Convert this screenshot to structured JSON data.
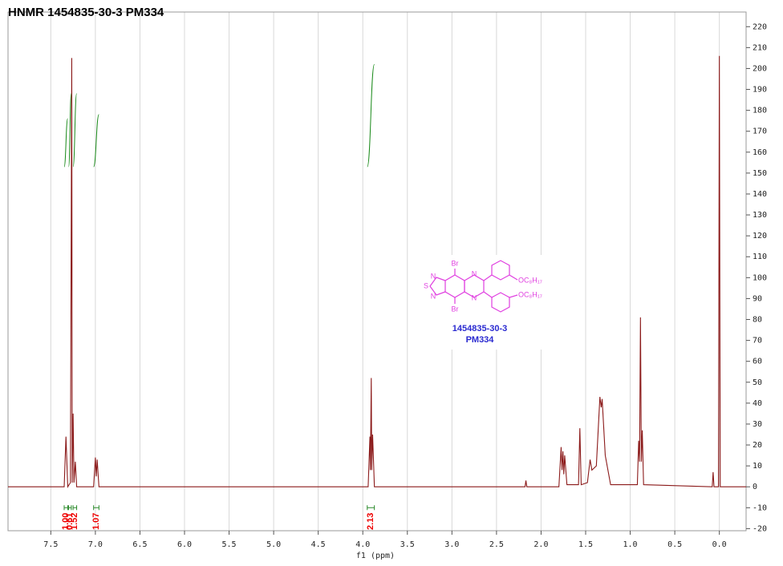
{
  "chart_data": {
    "type": "line",
    "title": "HNMR 1454835-30-3 PM334",
    "x_label": "f1 (ppm)",
    "xlim": [
      7.98,
      -0.3
    ],
    "ylim": [
      -21,
      227
    ],
    "xticks": [
      7.5,
      {
        "value": 7,
        "label": "7.0"
      },
      6.5,
      {
        "value": 6,
        "label": "6.0"
      },
      5.5,
      {
        "value": 5,
        "label": "5.0"
      },
      4.5,
      {
        "value": 4,
        "label": "4.0"
      },
      3.5,
      {
        "value": 3,
        "label": "3.0"
      },
      2.5,
      {
        "value": 2,
        "label": "2.0"
      },
      1.5,
      {
        "value": 1,
        "label": "1.0"
      },
      0.5,
      {
        "value": 0,
        "label": "0.0"
      }
    ],
    "yticks": [
      -20,
      -10,
      0,
      10,
      20,
      30,
      40,
      50,
      60,
      70,
      80,
      90,
      100,
      110,
      120,
      130,
      140,
      150,
      160,
      170,
      180,
      190,
      200,
      210,
      220
    ],
    "grid": "x",
    "series": [
      {
        "color": "#8b1a1a",
        "x": [
          7.98,
          7.35,
          7.33,
          7.31,
          7.28,
          7.265,
          7.26,
          7.25,
          7.24,
          7.225,
          7.21,
          7.02,
          7.0,
          6.99,
          6.98,
          6.96,
          3.94,
          3.92,
          3.915,
          3.905,
          3.9,
          3.89,
          3.87,
          2.18,
          2.17,
          2.16,
          1.8,
          1.775,
          1.765,
          1.755,
          1.745,
          1.735,
          1.71,
          1.58,
          1.565,
          1.55,
          1.48,
          1.45,
          1.43,
          1.38,
          1.34,
          1.325,
          1.315,
          1.28,
          1.22,
          0.92,
          0.905,
          0.895,
          0.885,
          0.875,
          0.865,
          0.85,
          0.08,
          0.07,
          0.06,
          0.01,
          0.0,
          -0.01,
          -0.3
        ],
        "values": [
          0,
          0,
          24,
          0,
          2,
          205,
          2,
          35,
          2,
          12,
          0,
          0,
          14,
          5,
          13,
          0,
          0,
          24,
          8,
          52,
          8,
          25,
          0,
          0,
          3,
          0,
          0,
          19,
          8,
          17,
          6,
          15,
          1,
          1,
          28,
          1,
          2,
          13,
          8,
          10,
          43,
          38,
          42,
          15,
          1,
          1,
          22,
          12,
          81,
          12,
          27,
          1,
          0,
          7,
          0,
          0,
          206,
          0,
          0
        ]
      }
    ],
    "integrals": [
      {
        "label": "1.00",
        "range": [
          7.35,
          7.31
        ],
        "curve": [
          153,
          176
        ]
      },
      {
        "label": "0.61",
        "range": [
          7.3,
          7.27
        ],
        "curve": [
          153,
          188
        ]
      },
      {
        "label": "1.52",
        "range": [
          7.25,
          7.21
        ],
        "curve": [
          153,
          188
        ]
      },
      {
        "label": "1.07",
        "range": [
          7.02,
          6.96
        ],
        "curve": [
          153,
          178
        ]
      },
      {
        "label": "2.13",
        "range": [
          3.95,
          3.87
        ],
        "curve": [
          153,
          202
        ]
      }
    ],
    "structure": {
      "atoms": [
        "Br",
        "N",
        "S",
        "N",
        "N",
        "N",
        "Br"
      ],
      "substituents": [
        "OC₈H₁₇",
        "OC₈H₁₇"
      ],
      "id": "1454835-30-3",
      "code": "PM334"
    }
  }
}
